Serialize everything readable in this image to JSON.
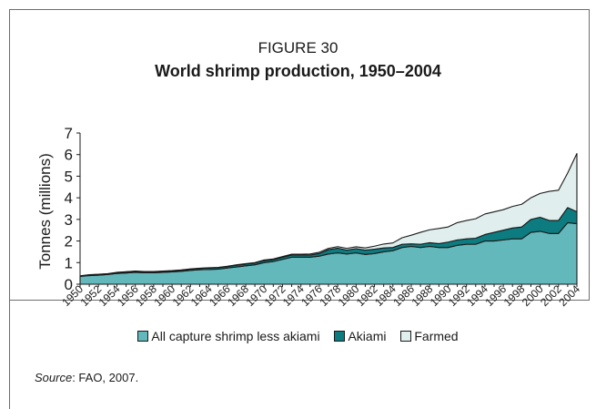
{
  "figure": {
    "label": "FIGURE 30",
    "title": "World shrimp production, 1950–2004"
  },
  "source": {
    "prefix": "Source",
    "text": ": FAO, 2007."
  },
  "chart_data": {
    "type": "area",
    "stacked": true,
    "ylabel": "Tonnes (millions)",
    "ylim": [
      0,
      7
    ],
    "yticks": [
      0,
      1,
      2,
      3,
      4,
      5,
      6,
      7
    ],
    "legend_position": "bottom",
    "grid": false,
    "x": [
      1950,
      1951,
      1952,
      1953,
      1954,
      1955,
      1956,
      1957,
      1958,
      1959,
      1960,
      1961,
      1962,
      1963,
      1964,
      1965,
      1966,
      1967,
      1968,
      1969,
      1970,
      1971,
      1972,
      1973,
      1974,
      1975,
      1976,
      1977,
      1978,
      1979,
      1980,
      1981,
      1982,
      1983,
      1984,
      1985,
      1986,
      1987,
      1988,
      1989,
      1990,
      1991,
      1992,
      1993,
      1994,
      1995,
      1996,
      1997,
      1998,
      1999,
      2000,
      2001,
      2002,
      2003,
      2004
    ],
    "xtick_labels": [
      "1950",
      "1952",
      "1954",
      "1956",
      "1958",
      "1960",
      "1962",
      "1964",
      "1966",
      "1968",
      "1970",
      "1972",
      "1974",
      "1976",
      "1978",
      "1980",
      "1982",
      "1984",
      "1986",
      "1988",
      "1990",
      "1992",
      "1994",
      "1996",
      "1998",
      "2000",
      "2002",
      "2004"
    ],
    "series": [
      {
        "name": "All capture shrimp less akiami",
        "color": "#63b8bb",
        "values": [
          0.36,
          0.4,
          0.42,
          0.45,
          0.5,
          0.52,
          0.55,
          0.53,
          0.53,
          0.55,
          0.57,
          0.6,
          0.64,
          0.67,
          0.68,
          0.7,
          0.75,
          0.8,
          0.85,
          0.9,
          1.0,
          1.05,
          1.15,
          1.25,
          1.25,
          1.25,
          1.3,
          1.4,
          1.45,
          1.4,
          1.45,
          1.38,
          1.42,
          1.5,
          1.55,
          1.7,
          1.75,
          1.7,
          1.75,
          1.7,
          1.7,
          1.8,
          1.85,
          1.85,
          2.0,
          2.0,
          2.05,
          2.1,
          2.1,
          2.4,
          2.45,
          2.35,
          2.35,
          2.85,
          2.8
        ]
      },
      {
        "name": "Akiami",
        "color": "#0d7c80",
        "values": [
          0.02,
          0.03,
          0.03,
          0.03,
          0.04,
          0.05,
          0.05,
          0.05,
          0.05,
          0.05,
          0.05,
          0.05,
          0.06,
          0.06,
          0.07,
          0.07,
          0.07,
          0.08,
          0.08,
          0.08,
          0.09,
          0.09,
          0.1,
          0.1,
          0.1,
          0.1,
          0.12,
          0.2,
          0.22,
          0.18,
          0.2,
          0.2,
          0.2,
          0.18,
          0.15,
          0.15,
          0.12,
          0.15,
          0.17,
          0.18,
          0.25,
          0.25,
          0.25,
          0.28,
          0.3,
          0.4,
          0.45,
          0.5,
          0.55,
          0.6,
          0.65,
          0.6,
          0.6,
          0.7,
          0.55
        ]
      },
      {
        "name": "Farmed",
        "color": "#e1eeee",
        "values": [
          0.01,
          0.01,
          0.01,
          0.01,
          0.01,
          0.01,
          0.01,
          0.01,
          0.01,
          0.01,
          0.01,
          0.01,
          0.01,
          0.01,
          0.01,
          0.01,
          0.01,
          0.02,
          0.02,
          0.02,
          0.03,
          0.03,
          0.03,
          0.04,
          0.04,
          0.05,
          0.06,
          0.06,
          0.07,
          0.08,
          0.08,
          0.1,
          0.14,
          0.18,
          0.21,
          0.3,
          0.4,
          0.55,
          0.6,
          0.7,
          0.7,
          0.8,
          0.85,
          0.9,
          0.95,
          0.95,
          0.95,
          1.0,
          1.05,
          1.0,
          1.1,
          1.35,
          1.4,
          1.6,
          2.7
        ]
      }
    ]
  }
}
